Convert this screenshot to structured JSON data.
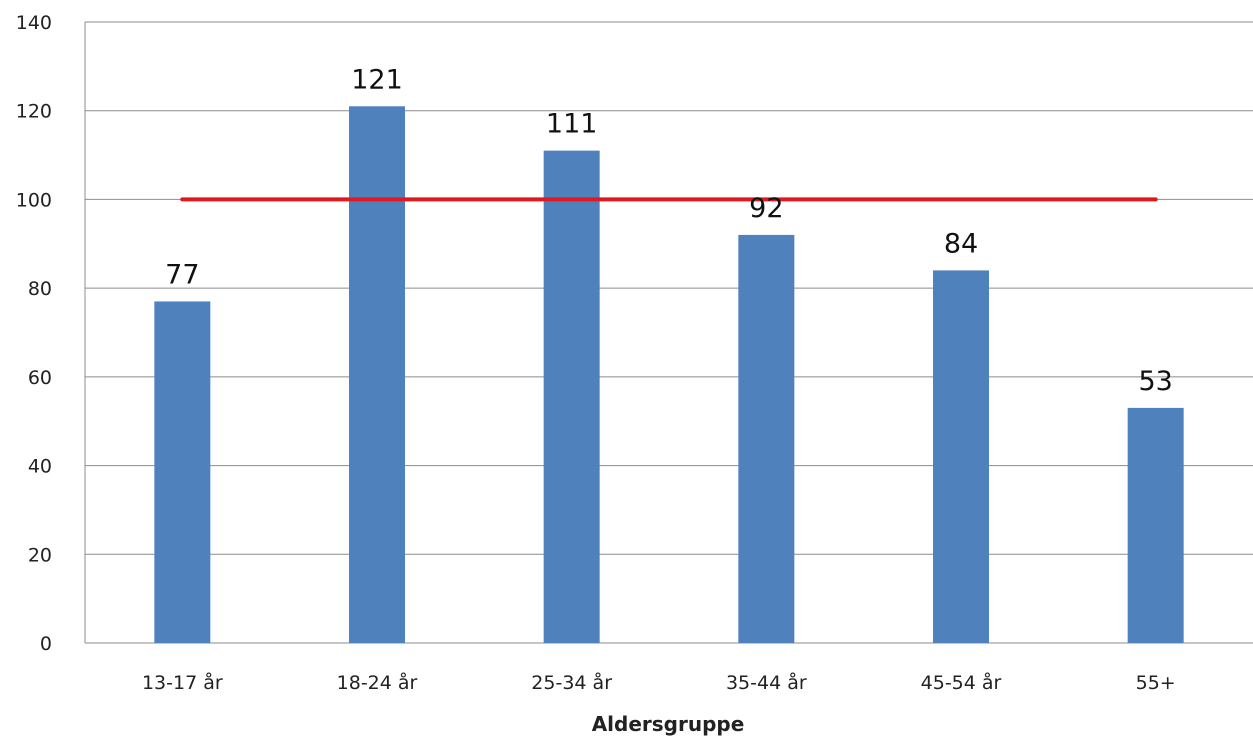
{
  "chart_data": {
    "type": "bar",
    "title": "",
    "xlabel": "Aldersgruppe",
    "ylabel": "",
    "categories": [
      "13-17 år",
      "18-24 år",
      "25-34 år",
      "35-44 år",
      "45-54 år",
      "55+"
    ],
    "values": [
      77,
      121,
      111,
      92,
      84,
      53
    ],
    "data_labels": [
      "77",
      "121",
      "111",
      "92",
      "84",
      "53"
    ],
    "ylim": [
      0,
      140
    ],
    "yticks": [
      0,
      20,
      40,
      60,
      80,
      100,
      120,
      140
    ],
    "grid": true,
    "legend": "none",
    "reference_line": {
      "y": 100
    },
    "colors": {
      "bar": "#4F81BD",
      "reference_line": "#E0191F",
      "grid": "#8C8C8C"
    }
  }
}
